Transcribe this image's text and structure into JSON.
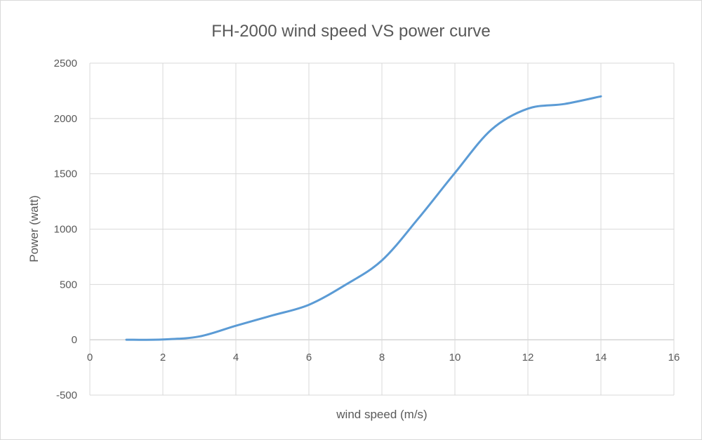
{
  "chart_data": {
    "type": "line",
    "title": "FH-2000 wind speed VS power curve",
    "xlabel": "wind speed (m/s)",
    "ylabel": "Power (watt)",
    "xlim": [
      0,
      16
    ],
    "ylim": [
      -500,
      2500
    ],
    "xticks": [
      0,
      2,
      4,
      6,
      8,
      10,
      12,
      14,
      16
    ],
    "yticks": [
      -500,
      0,
      500,
      1000,
      1500,
      2000,
      2500
    ],
    "grid": true,
    "smooth": true,
    "series": [
      {
        "name": "Power",
        "color": "#5B9BD5",
        "x": [
          1,
          2,
          3,
          4,
          5,
          6,
          7,
          8,
          9,
          10,
          11,
          12,
          13,
          14
        ],
        "y": [
          0,
          3,
          30,
          127,
          220,
          316,
          496,
          717,
          1097,
          1508,
          1899,
          2089,
          2131,
          2200
        ]
      }
    ]
  }
}
